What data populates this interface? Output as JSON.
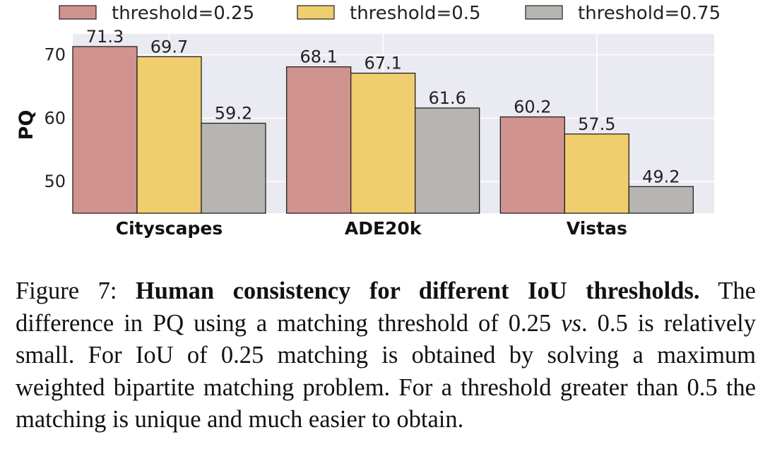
{
  "chart_data": {
    "type": "bar",
    "categories": [
      "Cityscapes",
      "ADE20k",
      "Vistas"
    ],
    "series": [
      {
        "name": "threshold=0.25",
        "color": "#d0938e",
        "values": [
          71.3,
          68.1,
          60.2
        ]
      },
      {
        "name": "threshold=0.5",
        "color": "#f0cd6d",
        "values": [
          69.7,
          67.1,
          57.5
        ]
      },
      {
        "name": "threshold=0.75",
        "color": "#b6b5b1",
        "values": [
          59.2,
          61.6,
          49.2
        ]
      }
    ],
    "ylabel": "PQ",
    "ylim": [
      45,
      73.3
    ],
    "yticks": [
      50,
      60,
      70
    ],
    "grid": true,
    "legend_position": "top",
    "background": "#eaeaf2"
  },
  "caption": {
    "label": "Figure 7:",
    "title": "Human consistency for different IoU thresholds.",
    "text_1": "The difference in PQ using a matching threshold of 0.25",
    "emphasis": "vs",
    "text_2": ". 0.5 is relatively small. For IoU of 0.25 matching is obtained by solving a maximum weighted bipartite matching problem. For a threshold greater than 0.5 the matching is unique and much easier to obtain."
  }
}
